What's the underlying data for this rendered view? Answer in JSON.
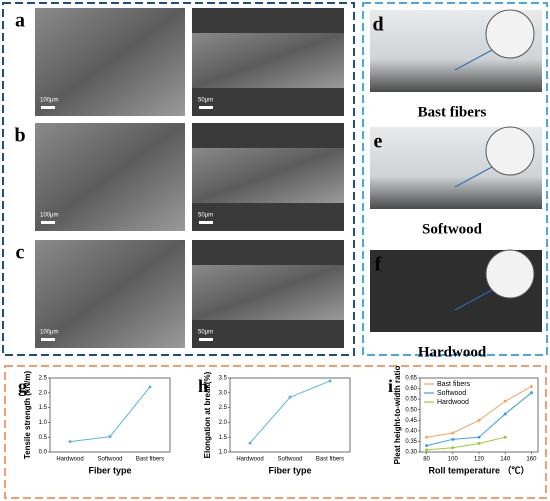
{
  "left_panels": [
    {
      "label": "a",
      "scale_left": "100μm",
      "scale_right": "50μm"
    },
    {
      "label": "b",
      "scale_left": "100μm",
      "scale_right": "50μm"
    },
    {
      "label": "c",
      "scale_left": "100μm",
      "scale_right": "50μm"
    }
  ],
  "right_panels": [
    {
      "label": "d",
      "caption": "Bast fibers"
    },
    {
      "label": "e",
      "caption": "Softwood"
    },
    {
      "label": "f",
      "caption": "Hardwood"
    }
  ],
  "chart_data": [
    {
      "type": "line",
      "panel": "g",
      "categories": [
        "Hardwood",
        "Softwood",
        "Bast fibers"
      ],
      "values": [
        0.35,
        0.52,
        2.2
      ],
      "color": "#5ab4e8",
      "x_label": "Fiber type",
      "y_label": "Tensile strength (kN/m)",
      "ylim": [
        0,
        2.5
      ],
      "yticks": [
        {
          "value": 0,
          "label": "0.0"
        },
        {
          "value": 0.5,
          "label": "0.5"
        },
        {
          "value": 1,
          "label": "1.0"
        },
        {
          "value": 1.5,
          "label": "1.5"
        },
        {
          "value": 2,
          "label": "2.0"
        },
        {
          "value": 2.5,
          "label": "2.5"
        }
      ]
    },
    {
      "type": "line",
      "panel": "h",
      "categories": [
        "Hardwood",
        "Softwood",
        "Bast fibers"
      ],
      "values": [
        1.3,
        2.85,
        3.4
      ],
      "color": "#5ab4e8",
      "x_label": "Fiber type",
      "y_label": "Elongation at break(%)",
      "ylim": [
        1,
        3.5
      ],
      "yticks": [
        {
          "value": 1,
          "label": "1.0"
        },
        {
          "value": 1.5,
          "label": "1.5"
        },
        {
          "value": 2,
          "label": "2.0"
        },
        {
          "value": 2.5,
          "label": "2.5"
        },
        {
          "value": 3,
          "label": "3.0"
        },
        {
          "value": 3.5,
          "label": "3.5"
        }
      ]
    },
    {
      "type": "multiline",
      "panel": "i",
      "x": [
        80,
        100,
        120,
        140,
        160
      ],
      "xlim": [
        75,
        165
      ],
      "xticks": [
        80,
        100,
        120,
        140,
        160
      ],
      "x_label": "Roll temperature （℃）",
      "y_label": "Pleat height-to-width ratio",
      "ylim": [
        0.3,
        0.65
      ],
      "yticks": [
        {
          "value": 0.3,
          "label": "0.30"
        },
        {
          "value": 0.35,
          "label": "0.35"
        },
        {
          "value": 0.4,
          "label": "0.40"
        },
        {
          "value": 0.45,
          "label": "0.45"
        },
        {
          "value": 0.5,
          "label": "0.50"
        },
        {
          "value": 0.55,
          "label": "0.55"
        },
        {
          "value": 0.6,
          "label": "0.60"
        },
        {
          "value": 0.65,
          "label": "0.65"
        }
      ],
      "series": [
        {
          "name": "Bast fibers",
          "color": "#f4a460",
          "values": [
            0.37,
            0.39,
            0.45,
            0.54,
            0.61
          ]
        },
        {
          "name": "Softwood",
          "color": "#3aa0e0",
          "values": [
            0.33,
            0.36,
            0.37,
            0.48,
            0.58
          ]
        },
        {
          "name": "Hardwood",
          "color": "#9acd32",
          "values": [
            0.31,
            0.32,
            0.34,
            0.37,
            null
          ]
        }
      ]
    }
  ]
}
